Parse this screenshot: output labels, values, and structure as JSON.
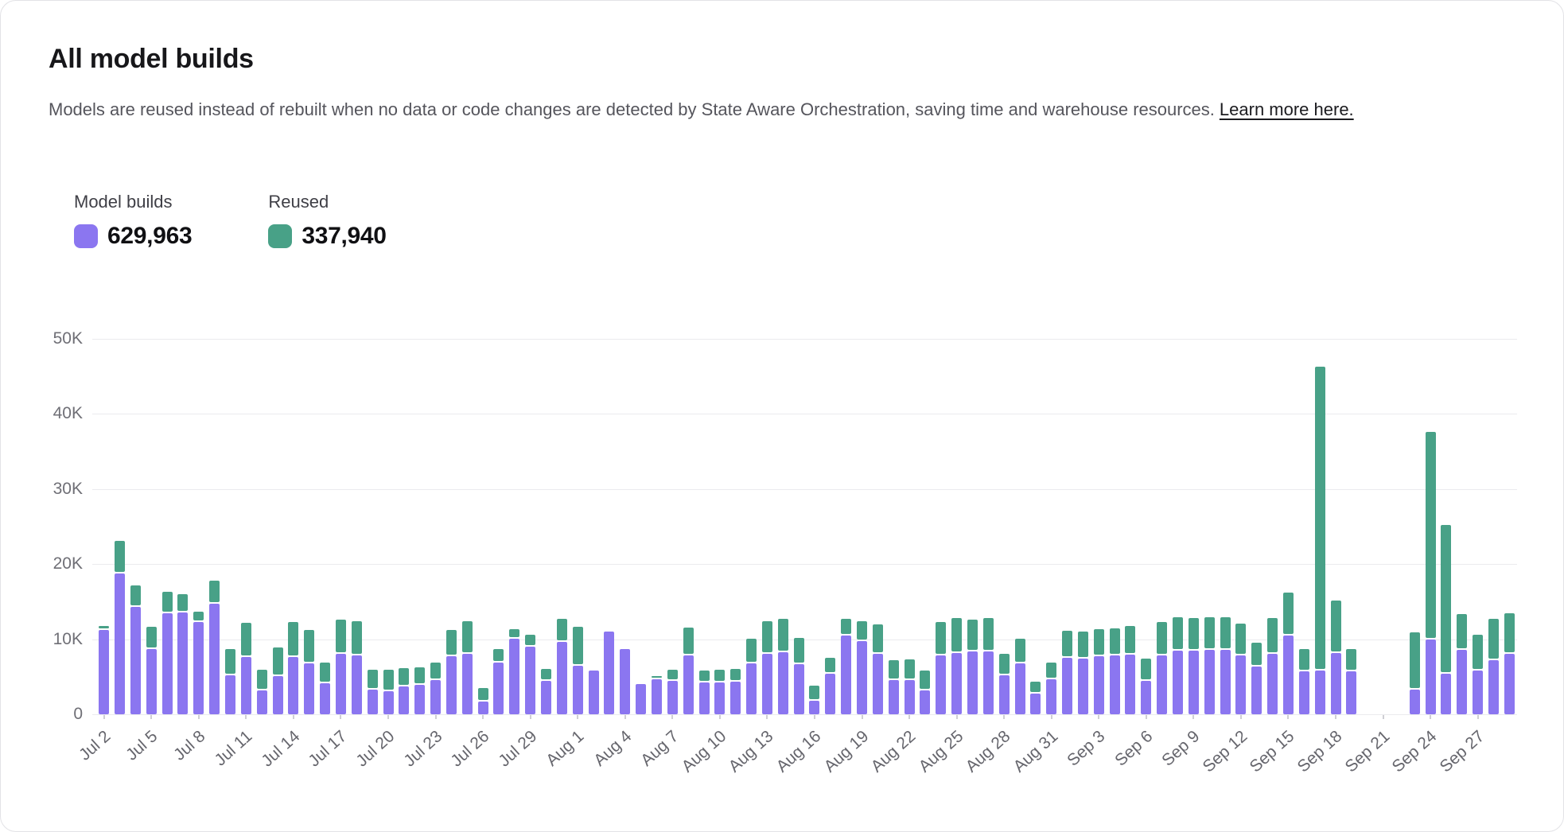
{
  "card": {
    "title": "All model builds",
    "subtitle_text": "Models are reused instead of rebuilt when no data or code changes are detected by State Aware Orchestration, saving time and warehouse resources.",
    "subtitle_link": "Learn more here."
  },
  "legend": {
    "builds": {
      "label": "Model builds",
      "value": "629,963",
      "color": "#8B76F0"
    },
    "reused": {
      "label": "Reused",
      "value": "337,940",
      "color": "#48A187"
    }
  },
  "chart_data": {
    "type": "bar",
    "stacked": true,
    "title": "All model builds",
    "xlabel": "",
    "ylabel": "",
    "values_unit": "thousands",
    "ylim": [
      0,
      50
    ],
    "ytick_values": [
      0,
      10,
      20,
      30,
      40,
      50
    ],
    "ytick_labels": [
      "0",
      "10K",
      "20K",
      "30K",
      "40K",
      "50K"
    ],
    "xtick_interval": 3,
    "grid": "horizontal",
    "legend_position": "top-left",
    "categories": [
      "Jul 2",
      "Jul 3",
      "Jul 4",
      "Jul 5",
      "Jul 6",
      "Jul 7",
      "Jul 8",
      "Jul 9",
      "Jul 10",
      "Jul 11",
      "Jul 12",
      "Jul 13",
      "Jul 14",
      "Jul 15",
      "Jul 16",
      "Jul 17",
      "Jul 18",
      "Jul 19",
      "Jul 20",
      "Jul 21",
      "Jul 22",
      "Jul 23",
      "Jul 24",
      "Jul 25",
      "Jul 26",
      "Jul 27",
      "Jul 28",
      "Jul 29",
      "Jul 30",
      "Jul 31",
      "Aug 1",
      "Aug 2",
      "Aug 3",
      "Aug 4",
      "Aug 5",
      "Aug 6",
      "Aug 7",
      "Aug 8",
      "Aug 9",
      "Aug 10",
      "Aug 11",
      "Aug 12",
      "Aug 13",
      "Aug 14",
      "Aug 15",
      "Aug 16",
      "Aug 17",
      "Aug 18",
      "Aug 19",
      "Aug 20",
      "Aug 21",
      "Aug 22",
      "Aug 23",
      "Aug 24",
      "Aug 25",
      "Aug 26",
      "Aug 27",
      "Aug 28",
      "Aug 29",
      "Aug 30",
      "Aug 31",
      "Sep 1",
      "Sep 2",
      "Sep 3",
      "Sep 4",
      "Sep 5",
      "Sep 6",
      "Sep 7",
      "Sep 8",
      "Sep 9",
      "Sep 10",
      "Sep 11",
      "Sep 12",
      "Sep 13",
      "Sep 14",
      "Sep 15",
      "Sep 16",
      "Sep 17",
      "Sep 18",
      "Sep 19",
      "Sep 20",
      "Sep 21",
      "Sep 22",
      "Sep 23",
      "Sep 24",
      "Sep 25",
      "Sep 26",
      "Sep 27",
      "Sep 28",
      "Sep 29"
    ],
    "series": [
      {
        "name": "Model builds",
        "color": "#8B76F0",
        "values": [
          11.2,
          18.7,
          14.3,
          8.7,
          13.5,
          13.6,
          12.3,
          14.7,
          5.2,
          7.6,
          3.2,
          5.1,
          7.6,
          6.8,
          4.1,
          8.0,
          7.8,
          3.3,
          3.1,
          3.7,
          3.9,
          4.6,
          7.7,
          8.1,
          1.7,
          6.9,
          10.1,
          9.0,
          4.4,
          9.6,
          6.5,
          5.8,
          11.0,
          8.7,
          4.0,
          4.7,
          4.4,
          7.8,
          4.2,
          4.2,
          4.3,
          6.8,
          8.1,
          8.3,
          6.7,
          1.8,
          5.4,
          10.5,
          9.7,
          8.1,
          4.6,
          4.6,
          3.2,
          7.8,
          8.2,
          8.4,
          8.4,
          5.2,
          6.8,
          2.8,
          4.7,
          7.5,
          7.4,
          7.7,
          7.8,
          7.9,
          4.5,
          7.8,
          8.5,
          8.5,
          8.6,
          8.6,
          7.8,
          6.4,
          8.0,
          10.5,
          5.7,
          5.8,
          8.2,
          5.7,
          0,
          0,
          0,
          3.3,
          10.0,
          5.4,
          8.6,
          5.8,
          7.2,
          8.1
        ]
      },
      {
        "name": "Reused",
        "color": "#48A187",
        "values": [
          0.3,
          4.2,
          2.7,
          2.7,
          2.6,
          2.2,
          1.2,
          2.9,
          3.3,
          4.4,
          2.5,
          3.6,
          4.5,
          4.2,
          2.6,
          4.4,
          4.4,
          2.4,
          2.6,
          2.2,
          2.1,
          2.1,
          3.3,
          4.1,
          1.6,
          1.6,
          1.0,
          1.4,
          1.4,
          2.9,
          4.9,
          0,
          0,
          0,
          0,
          0.2,
          1.3,
          3.5,
          1.4,
          1.5,
          1.5,
          3.0,
          4.1,
          4.2,
          3.3,
          1.8,
          1.9,
          2.0,
          2.5,
          3.7,
          2.4,
          2.5,
          2.4,
          4.3,
          4.4,
          4.0,
          4.2,
          2.6,
          3.1,
          1.3,
          2.0,
          3.4,
          3.4,
          3.4,
          3.4,
          3.6,
          2.7,
          4.3,
          4.2,
          4.1,
          4.1,
          4.1,
          4.1,
          2.9,
          4.6,
          5.5,
          2.8,
          40.3,
          6.7,
          2.8,
          0,
          0,
          0,
          7.4,
          27.4,
          19.6,
          4.5,
          4.6,
          5.3,
          5.1
        ]
      }
    ]
  }
}
